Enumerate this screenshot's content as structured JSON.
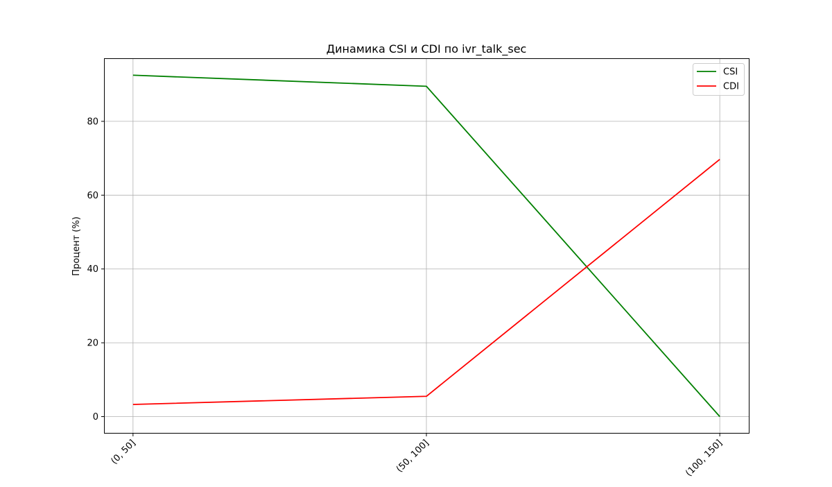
{
  "chart_data": {
    "type": "line",
    "title": "Динамика CSI и CDI по ivr_talk_sec",
    "xlabel": "",
    "ylabel": "Процент (%)",
    "categories": [
      "(0, 50]",
      "(50, 100]",
      "(100, 150]"
    ],
    "ylim": [
      -4.6,
      96.9
    ],
    "yticks": [
      0,
      20,
      40,
      60,
      80
    ],
    "grid": true,
    "legend_position": "top-right",
    "series": [
      {
        "name": "CSI",
        "color": "#008000",
        "values": [
          92.5,
          89.5,
          0.0
        ]
      },
      {
        "name": "CDI",
        "color": "#ff0000",
        "values": [
          3.3,
          5.5,
          69.7
        ]
      }
    ]
  }
}
